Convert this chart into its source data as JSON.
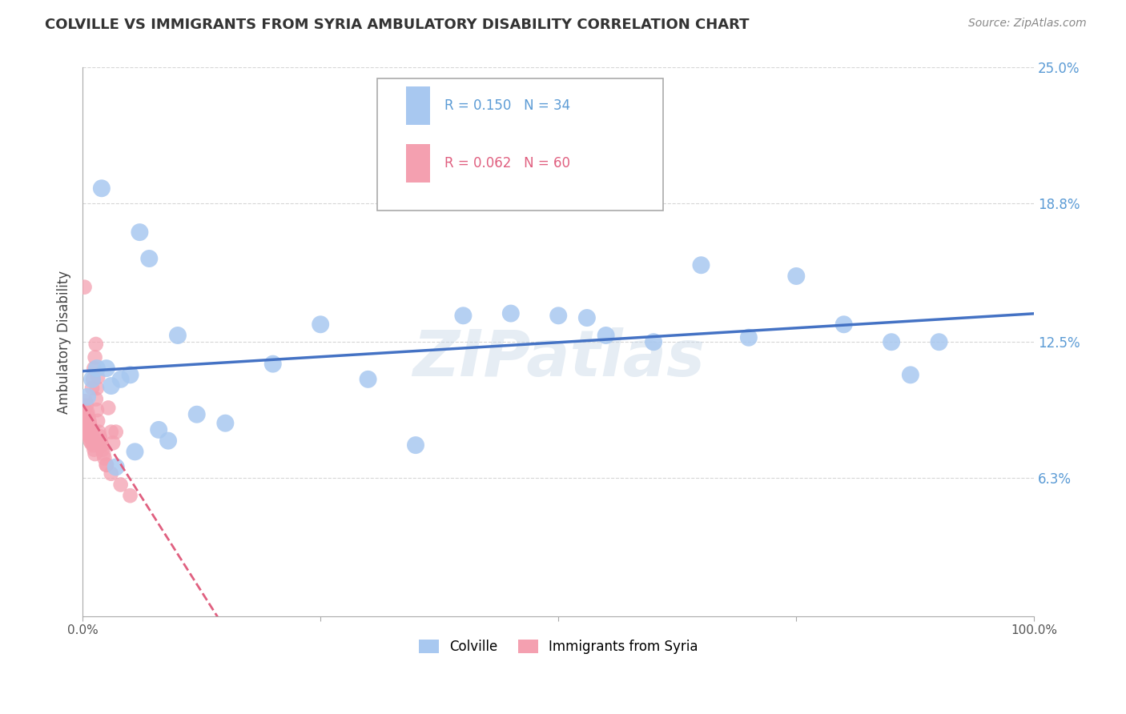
{
  "title": "COLVILLE VS IMMIGRANTS FROM SYRIA AMBULATORY DISABILITY CORRELATION CHART",
  "source": "Source: ZipAtlas.com",
  "ylabel": "Ambulatory Disability",
  "xlim": [
    0,
    1.0
  ],
  "ylim": [
    0,
    0.25
  ],
  "yticks": [
    0.063,
    0.125,
    0.188,
    0.25
  ],
  "ytick_labels": [
    "6.3%",
    "12.5%",
    "18.8%",
    "25.0%"
  ],
  "xticks": [
    0.0,
    0.25,
    0.5,
    0.75,
    1.0
  ],
  "xtick_labels": [
    "0.0%",
    "",
    "",
    "",
    "100.0%"
  ],
  "colville_R": 0.15,
  "colville_N": 34,
  "syria_R": 0.062,
  "syria_N": 60,
  "colville_color": "#a8c8f0",
  "colville_line_color": "#4472c4",
  "syria_color": "#f4a0b0",
  "syria_line_color": "#e06080",
  "background_color": "#ffffff",
  "grid_color": "#cccccc",
  "colville_x": [
    0.005,
    0.01,
    0.015,
    0.02,
    0.025,
    0.03,
    0.04,
    0.05,
    0.06,
    0.07,
    0.08,
    0.1,
    0.12,
    0.15,
    0.2,
    0.25,
    0.3,
    0.35,
    0.4,
    0.45,
    0.5,
    0.53,
    0.55,
    0.6,
    0.65,
    0.7,
    0.75,
    0.8,
    0.85,
    0.87,
    0.9,
    0.035,
    0.055,
    0.09
  ],
  "colville_y": [
    0.1,
    0.108,
    0.113,
    0.195,
    0.113,
    0.105,
    0.108,
    0.11,
    0.175,
    0.163,
    0.085,
    0.128,
    0.092,
    0.088,
    0.115,
    0.133,
    0.108,
    0.078,
    0.137,
    0.138,
    0.137,
    0.136,
    0.128,
    0.125,
    0.16,
    0.127,
    0.155,
    0.133,
    0.125,
    0.11,
    0.125,
    0.068,
    0.075,
    0.08
  ],
  "syria_x": [
    0.001,
    0.001,
    0.001,
    0.002,
    0.002,
    0.002,
    0.003,
    0.003,
    0.004,
    0.004,
    0.005,
    0.005,
    0.006,
    0.006,
    0.007,
    0.007,
    0.008,
    0.008,
    0.009,
    0.009,
    0.01,
    0.01,
    0.011,
    0.012,
    0.013,
    0.014,
    0.015,
    0.016,
    0.017,
    0.018,
    0.019,
    0.02,
    0.021,
    0.022,
    0.023,
    0.025,
    0.027,
    0.03,
    0.032,
    0.035,
    0.002,
    0.003,
    0.004,
    0.005,
    0.006,
    0.007,
    0.008,
    0.009,
    0.01,
    0.011,
    0.012,
    0.013,
    0.014,
    0.015,
    0.016,
    0.02,
    0.025,
    0.03,
    0.04,
    0.05
  ],
  "syria_y": [
    0.09,
    0.093,
    0.095,
    0.088,
    0.091,
    0.094,
    0.086,
    0.089,
    0.084,
    0.087,
    0.085,
    0.089,
    0.083,
    0.087,
    0.082,
    0.086,
    0.08,
    0.084,
    0.079,
    0.082,
    0.081,
    0.085,
    0.078,
    0.076,
    0.074,
    0.099,
    0.094,
    0.089,
    0.084,
    0.082,
    0.08,
    0.078,
    0.076,
    0.074,
    0.072,
    0.069,
    0.095,
    0.084,
    0.079,
    0.084,
    0.15,
    0.098,
    0.096,
    0.093,
    0.091,
    0.089,
    0.087,
    0.085,
    0.104,
    0.108,
    0.113,
    0.118,
    0.124,
    0.104,
    0.109,
    0.078,
    0.069,
    0.065,
    0.06,
    0.055
  ],
  "legend_label_colville": "Colville",
  "legend_label_syria": "Immigrants from Syria",
  "watermark": "ZIPatlas"
}
